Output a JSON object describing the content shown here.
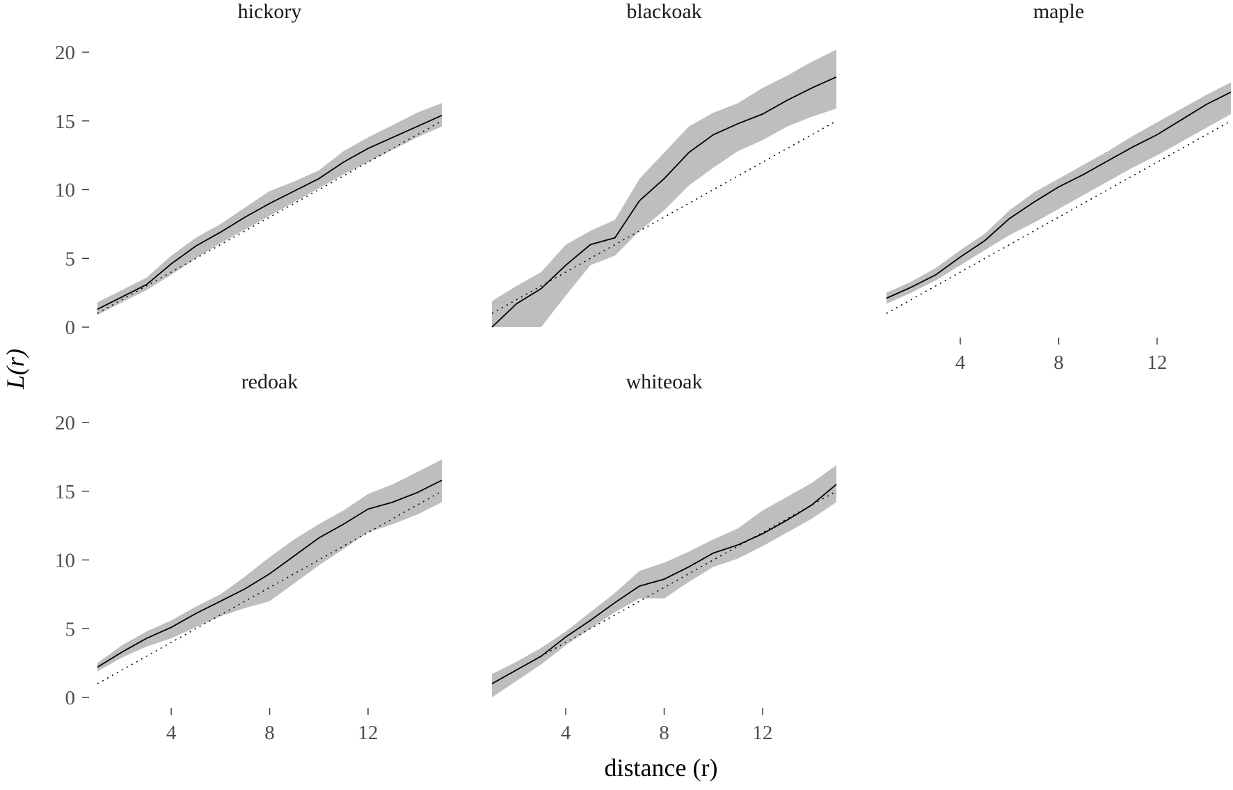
{
  "chart_data": {
    "type": "line",
    "xlabel": "distance (r)",
    "ylabel": "L(r)",
    "xlim": [
      1,
      15
    ],
    "ylim": [
      0,
      20
    ],
    "x_ticks": [
      4,
      8,
      12
    ],
    "y_ticks": [
      0,
      5,
      10,
      15,
      20
    ],
    "x_tick_labels": [
      "4",
      "8",
      "12"
    ],
    "y_tick_labels": [
      "0",
      "5",
      "10",
      "15",
      "20"
    ],
    "grid": false,
    "legend": "none",
    "colors": {
      "observed": "#000000",
      "theoretical": "#000000",
      "envelope": "#bebebe"
    },
    "panels": [
      {
        "title": "hickory",
        "r": [
          1,
          2,
          3,
          4,
          5,
          6,
          7,
          8,
          9,
          10,
          11,
          12,
          13,
          14,
          15
        ],
        "obs": [
          1.3,
          2.2,
          3.1,
          4.6,
          5.9,
          6.9,
          8.0,
          9.0,
          9.9,
          10.8,
          12.0,
          13.0,
          13.8,
          14.6,
          15.4
        ],
        "lo": [
          0.9,
          1.8,
          2.7,
          3.8,
          5.0,
          6.1,
          7.1,
          8.1,
          9.1,
          10.1,
          11.1,
          12.0,
          12.9,
          13.8,
          14.6
        ],
        "hi": [
          1.8,
          2.7,
          3.6,
          5.2,
          6.5,
          7.5,
          8.7,
          9.9,
          10.6,
          11.4,
          12.8,
          13.8,
          14.7,
          15.6,
          16.3
        ]
      },
      {
        "title": "blackoak",
        "r": [
          1,
          2,
          3,
          4,
          5,
          6,
          7,
          8,
          9,
          10,
          11,
          12,
          13,
          14,
          15
        ],
        "obs": [
          0.0,
          1.7,
          2.8,
          4.5,
          6.0,
          6.5,
          9.2,
          10.8,
          12.7,
          14.0,
          14.8,
          15.5,
          16.5,
          17.4,
          18.2
        ],
        "lo": [
          0.0,
          0.0,
          0.0,
          2.3,
          4.5,
          5.2,
          7.0,
          8.5,
          10.3,
          11.6,
          12.8,
          13.6,
          14.6,
          15.3,
          15.9
        ],
        "hi": [
          1.9,
          3.0,
          4.0,
          6.0,
          7.0,
          7.8,
          10.8,
          12.7,
          14.6,
          15.6,
          16.3,
          17.4,
          18.3,
          19.3,
          20.2
        ]
      },
      {
        "title": "maple",
        "r": [
          1,
          2,
          3,
          4,
          5,
          6,
          7,
          8,
          9,
          10,
          11,
          12,
          13,
          14,
          15
        ],
        "obs": [
          2.1,
          2.9,
          3.8,
          5.1,
          6.3,
          7.9,
          9.1,
          10.2,
          11.1,
          12.1,
          13.1,
          14.0,
          15.1,
          16.2,
          17.1
        ],
        "lo": [
          1.7,
          2.5,
          3.4,
          4.5,
          5.6,
          6.7,
          7.6,
          8.6,
          9.6,
          10.6,
          11.6,
          12.5,
          13.5,
          14.5,
          15.5
        ],
        "hi": [
          2.5,
          3.3,
          4.3,
          5.6,
          6.8,
          8.5,
          9.8,
          10.8,
          11.8,
          12.8,
          13.9,
          14.9,
          15.9,
          16.9,
          17.8
        ]
      },
      {
        "title": "redoak",
        "r": [
          1,
          2,
          3,
          4,
          5,
          6,
          7,
          8,
          9,
          10,
          11,
          12,
          13,
          14,
          15
        ],
        "obs": [
          2.2,
          3.3,
          4.3,
          5.1,
          6.1,
          7.0,
          7.9,
          9.0,
          10.3,
          11.6,
          12.6,
          13.7,
          14.2,
          14.9,
          15.8
        ],
        "lo": [
          1.9,
          2.9,
          3.7,
          4.3,
          5.1,
          5.9,
          6.5,
          7.0,
          8.3,
          9.6,
          10.8,
          12.0,
          12.6,
          13.3,
          14.2
        ],
        "hi": [
          2.5,
          3.8,
          4.8,
          5.6,
          6.6,
          7.5,
          8.8,
          10.2,
          11.5,
          12.6,
          13.6,
          14.8,
          15.5,
          16.4,
          17.3
        ]
      },
      {
        "title": "whiteoak",
        "r": [
          1,
          2,
          3,
          4,
          5,
          6,
          7,
          8,
          9,
          10,
          11,
          12,
          13,
          14,
          15
        ],
        "obs": [
          1.0,
          2.0,
          3.0,
          4.4,
          5.6,
          6.9,
          8.1,
          8.6,
          9.5,
          10.5,
          11.1,
          11.9,
          12.9,
          14.0,
          15.5
        ],
        "lo": [
          0.0,
          1.2,
          2.4,
          3.8,
          5.0,
          6.2,
          7.2,
          7.2,
          8.4,
          9.5,
          10.1,
          11.0,
          12.0,
          13.0,
          14.2
        ],
        "hi": [
          1.7,
          2.6,
          3.6,
          4.8,
          6.2,
          7.6,
          9.2,
          9.8,
          10.6,
          11.5,
          12.3,
          13.6,
          14.6,
          15.6,
          16.9
        ]
      }
    ]
  }
}
